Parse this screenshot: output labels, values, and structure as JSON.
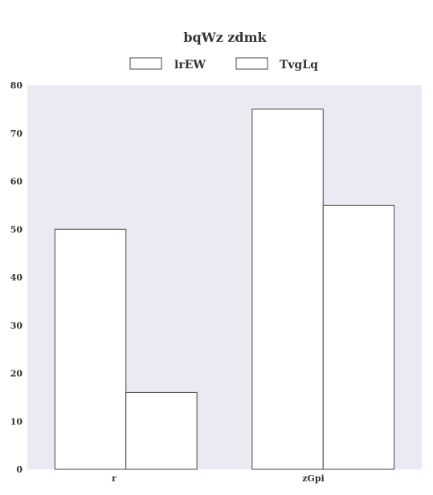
{
  "chart_data": {
    "type": "bar",
    "title": "bqWz zdmk",
    "categories": [
      "r",
      "zGpi"
    ],
    "series": [
      {
        "name": "lrEW",
        "values": [
          50,
          75
        ]
      },
      {
        "name": "TvgLq",
        "values": [
          16,
          55
        ]
      }
    ],
    "ylim": [
      0,
      80
    ],
    "yticks": [
      0,
      10,
      20,
      30,
      40,
      50,
      60,
      70,
      80
    ],
    "xlabel": "",
    "ylabel": "",
    "grid": false,
    "legend_position": "top",
    "colors": {
      "plot_background": "#eaeaf2",
      "bar_fill": "#ffffff",
      "bar_stroke": "#444444",
      "text": "#333333"
    }
  }
}
